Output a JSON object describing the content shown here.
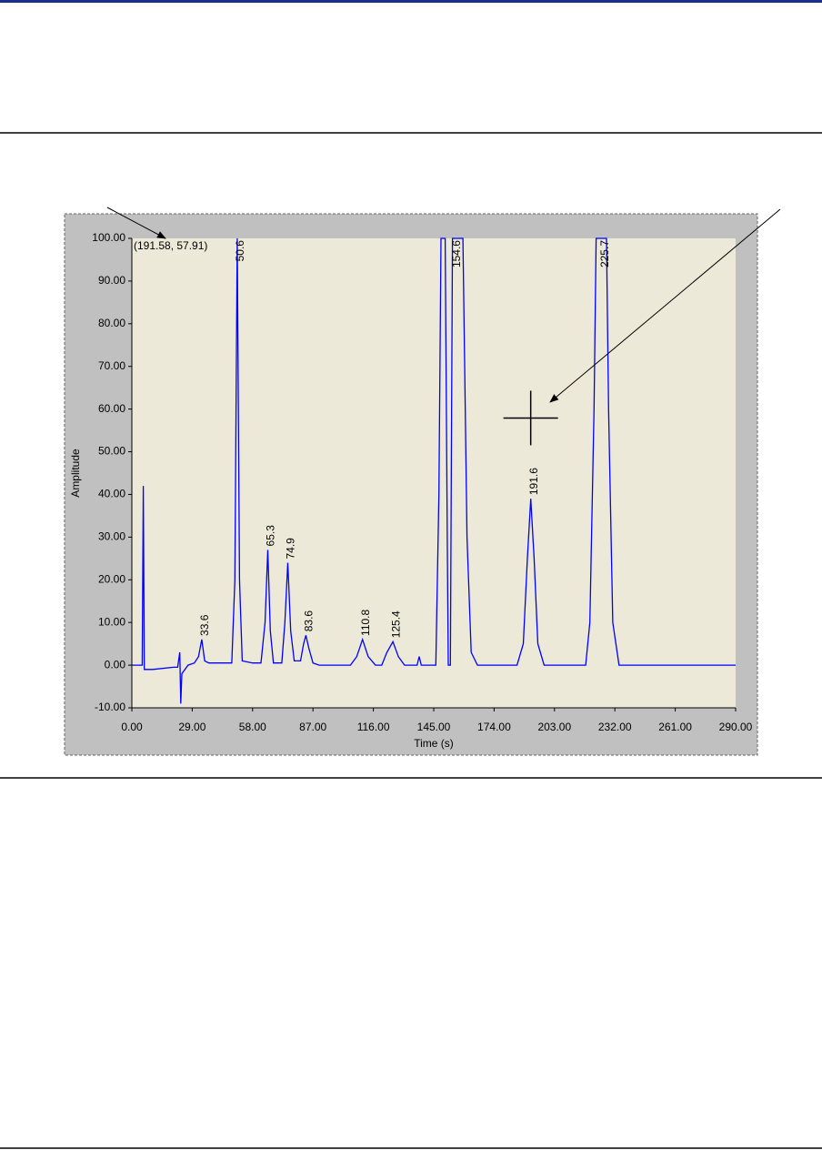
{
  "chart_data": {
    "type": "line",
    "xlabel": "Time (s)",
    "ylabel": "Amplitude",
    "color": "#0000ff",
    "xlim": [
      0,
      290
    ],
    "ylim": [
      -10,
      100
    ],
    "xticks": [
      {
        "value": 0,
        "label": "0.00"
      },
      {
        "value": 29,
        "label": "29.00"
      },
      {
        "value": 58,
        "label": "58.00"
      },
      {
        "value": 87,
        "label": "87.00"
      },
      {
        "value": 116,
        "label": "116.00"
      },
      {
        "value": 145,
        "label": "145.00"
      },
      {
        "value": 174,
        "label": "174.00"
      },
      {
        "value": 203,
        "label": "203.00"
      },
      {
        "value": 232,
        "label": "232.00"
      },
      {
        "value": 261,
        "label": "261.00"
      },
      {
        "value": 290,
        "label": "290.00"
      }
    ],
    "yticks": [
      {
        "value": -10,
        "label": "-10.00"
      },
      {
        "value": 0,
        "label": "0.00"
      },
      {
        "value": 10,
        "label": "10.00"
      },
      {
        "value": 20,
        "label": "20.00"
      },
      {
        "value": 30,
        "label": "30.00"
      },
      {
        "value": 40,
        "label": "40.00"
      },
      {
        "value": 50,
        "label": "50.00"
      },
      {
        "value": 60,
        "label": "60.00"
      },
      {
        "value": 70,
        "label": "70.00"
      },
      {
        "value": 80,
        "label": "80.00"
      },
      {
        "value": 90,
        "label": "90.00"
      },
      {
        "value": 100,
        "label": "100.00"
      }
    ],
    "x": [
      0,
      5,
      5.5,
      6,
      10,
      20,
      22,
      23,
      23.5,
      24,
      27,
      30,
      32,
      33.6,
      35,
      37,
      45,
      48,
      49.5,
      50.6,
      51.7,
      53,
      58,
      62,
      64,
      65.3,
      66.5,
      68,
      72,
      73.5,
      74.9,
      76.3,
      78,
      81,
      82.5,
      83.6,
      85,
      87,
      90,
      105,
      108,
      110.8,
      113.5,
      117,
      120,
      122.5,
      125.4,
      128,
      131,
      137,
      138,
      139,
      146,
      147.5,
      148.5,
      150.5,
      151.5,
      152,
      153,
      154,
      159,
      161,
      163,
      166,
      185,
      188,
      190,
      191.6,
      193.2,
      195,
      198,
      218,
      220,
      222,
      223,
      228,
      229,
      231,
      234,
      290
    ],
    "values": [
      0,
      0,
      42,
      -1,
      -1,
      -0.5,
      -0.5,
      3,
      -9,
      -2,
      0,
      0.5,
      2,
      6,
      1,
      0.5,
      0.5,
      0.5,
      20,
      100,
      20,
      1,
      0.5,
      0.5,
      10,
      27,
      8,
      0.5,
      0.5,
      10,
      24,
      8,
      1,
      1,
      5,
      7,
      4,
      0.5,
      0,
      0,
      2,
      6,
      2,
      0,
      0,
      3,
      5.5,
      2,
      0,
      0,
      2,
      0,
      0,
      40,
      100,
      100,
      30,
      0,
      0,
      100,
      100,
      30,
      3,
      0,
      0,
      5,
      25,
      39,
      25,
      5,
      0,
      0,
      10,
      60,
      100,
      100,
      60,
      10,
      0,
      0
    ],
    "peak_labels": [
      33.6,
      50.6,
      65.3,
      74.9,
      83.6,
      110.8,
      125.4,
      154.6,
      191.6,
      225.7
    ],
    "cursor": {
      "label": "(191.58, 57.91)",
      "x": 191.58,
      "y": 57.91
    }
  }
}
